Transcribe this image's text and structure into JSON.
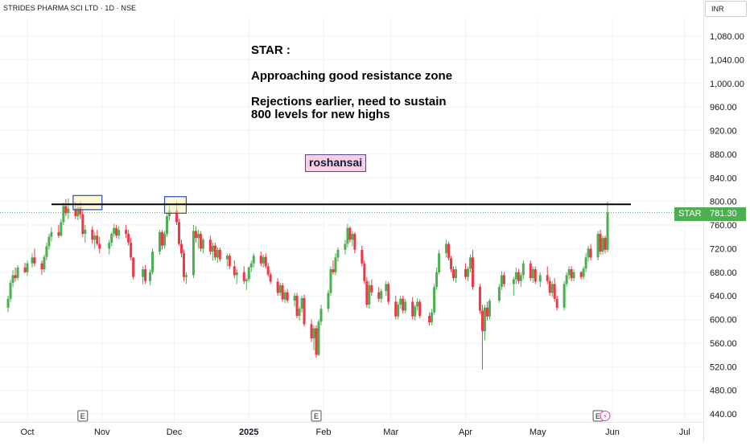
{
  "header": {
    "symbol_title": "STRIDES PHARMA SCI LTD · 1D · NSE",
    "currency": "INR"
  },
  "annotations": {
    "title": "STAR :",
    "line1": "Approaching good resistance zone",
    "line2": "Rejections earlier, need to sustain 800 levels for new highs",
    "author": "roshansai"
  },
  "last_price": {
    "symbol": "STAR",
    "value": "781.30",
    "numeric": 781.3
  },
  "colors": {
    "up": "#4caf50",
    "down": "#f23645",
    "price_tag": "#4caf50",
    "resistance": "#000000",
    "highlight_fill": "#fff3b0",
    "highlight_border": "#2a4fb5",
    "earnings_border": "#555555",
    "dividend": "#e040a0"
  },
  "chart_data": {
    "type": "candlestick",
    "resistance_level": 795,
    "ylim": [
      430,
      1110
    ],
    "y_ticks": [
      "440.00",
      "480.00",
      "520.00",
      "560.00",
      "600.00",
      "640.00",
      "680.00",
      "720.00",
      "760.00",
      "800.00",
      "840.00",
      "880.00",
      "920.00",
      "960.00",
      "1,000.00",
      "1,040.00",
      "1,080.00"
    ],
    "x_ticks": [
      {
        "label": "Oct",
        "date": "2024-10-01"
      },
      {
        "label": "Nov",
        "date": "2024-11-01"
      },
      {
        "label": "Dec",
        "date": "2024-12-01"
      },
      {
        "label": "2025",
        "date": "2025-01-01"
      },
      {
        "label": "Feb",
        "date": "2025-02-01"
      },
      {
        "label": "Mar",
        "date": "2025-03-01"
      },
      {
        "label": "Apr",
        "date": "2025-04-01"
      },
      {
        "label": "May",
        "date": "2025-05-01"
      },
      {
        "label": "Jun",
        "date": "2025-06-01"
      },
      {
        "label": "Jul",
        "date": "2025-07-01"
      }
    ],
    "highlight_zones": [
      {
        "from": "2024-10-21",
        "to": "2024-10-31",
        "low": 786,
        "high": 810
      },
      {
        "from": "2024-11-28",
        "to": "2024-12-05",
        "low": 780,
        "high": 808
      }
    ],
    "events": [
      {
        "type": "earnings",
        "label": "E",
        "date": "2024-10-24"
      },
      {
        "type": "earnings",
        "label": "E",
        "date": "2025-01-29"
      },
      {
        "type": "earnings",
        "label": "E",
        "date": "2025-05-26"
      },
      {
        "type": "dividend",
        "label": "⚡",
        "date": "2025-05-29"
      }
    ],
    "candles": [
      [
        "2024-09-23",
        620,
        640,
        612,
        635
      ],
      [
        "2024-09-24",
        635,
        668,
        630,
        662
      ],
      [
        "2024-09-25",
        662,
        684,
        655,
        675
      ],
      [
        "2024-09-26",
        675,
        688,
        664,
        670
      ],
      [
        "2024-09-27",
        670,
        692,
        666,
        688
      ],
      [
        "2024-09-30",
        688,
        696,
        678,
        680
      ],
      [
        "2024-10-01",
        680,
        700,
        674,
        695
      ],
      [
        "2024-10-03",
        695,
        712,
        688,
        705
      ],
      [
        "2024-10-04",
        705,
        720,
        690,
        695
      ],
      [
        "2024-10-07",
        695,
        700,
        676,
        685
      ],
      [
        "2024-10-08",
        685,
        710,
        680,
        706
      ],
      [
        "2024-10-09",
        706,
        730,
        700,
        724
      ],
      [
        "2024-10-10",
        724,
        745,
        718,
        740
      ],
      [
        "2024-10-11",
        740,
        756,
        732,
        748
      ],
      [
        "2024-10-14",
        748,
        760,
        738,
        742
      ],
      [
        "2024-10-15",
        742,
        770,
        740,
        765
      ],
      [
        "2024-10-16",
        765,
        798,
        760,
        792
      ],
      [
        "2024-10-17",
        792,
        804,
        775,
        780
      ],
      [
        "2024-10-18",
        780,
        805,
        770,
        788
      ],
      [
        "2024-10-21",
        788,
        800,
        770,
        775
      ],
      [
        "2024-10-22",
        775,
        795,
        768,
        790
      ],
      [
        "2024-10-23",
        790,
        800,
        770,
        778
      ],
      [
        "2024-10-24",
        778,
        786,
        740,
        745
      ],
      [
        "2024-10-25",
        745,
        760,
        730,
        752
      ],
      [
        "2024-10-28",
        752,
        758,
        728,
        735
      ],
      [
        "2024-10-29",
        735,
        748,
        720,
        742
      ],
      [
        "2024-10-30",
        742,
        752,
        725,
        728
      ],
      [
        "2024-10-31",
        728,
        740,
        712,
        720
      ],
      [
        "2024-11-04",
        720,
        735,
        710,
        730
      ],
      [
        "2024-11-05",
        730,
        748,
        724,
        745
      ],
      [
        "2024-11-06",
        745,
        762,
        740,
        755
      ],
      [
        "2024-11-07",
        755,
        760,
        738,
        742
      ],
      [
        "2024-11-08",
        742,
        758,
        736,
        752
      ],
      [
        "2024-11-11",
        752,
        760,
        738,
        745
      ],
      [
        "2024-11-12",
        745,
        752,
        725,
        730
      ],
      [
        "2024-11-13",
        730,
        738,
        700,
        705
      ],
      [
        "2024-11-14",
        705,
        705,
        668,
        672
      ],
      [
        "2024-11-18",
        672,
        690,
        660,
        685
      ],
      [
        "2024-11-19",
        685,
        692,
        660,
        665
      ],
      [
        "2024-11-21",
        665,
        685,
        658,
        680
      ],
      [
        "2024-11-22",
        680,
        720,
        676,
        715
      ],
      [
        "2024-11-25",
        715,
        752,
        710,
        748
      ],
      [
        "2024-11-26",
        748,
        752,
        718,
        725
      ],
      [
        "2024-11-27",
        725,
        750,
        720,
        745
      ],
      [
        "2024-11-28",
        745,
        780,
        740,
        775
      ],
      [
        "2024-11-29",
        775,
        792,
        768,
        785
      ],
      [
        "2024-12-02",
        785,
        800,
        760,
        765
      ],
      [
        "2024-12-03",
        765,
        770,
        725,
        728
      ],
      [
        "2024-12-04",
        728,
        735,
        705,
        712
      ],
      [
        "2024-12-05",
        712,
        718,
        665,
        672
      ],
      [
        "2024-12-06",
        672,
        680,
        660,
        675
      ],
      [
        "2024-12-09",
        675,
        760,
        670,
        750
      ],
      [
        "2024-12-10",
        750,
        758,
        730,
        738
      ],
      [
        "2024-12-11",
        738,
        752,
        720,
        745
      ],
      [
        "2024-12-12",
        745,
        750,
        715,
        720
      ],
      [
        "2024-12-13",
        720,
        738,
        712,
        735
      ],
      [
        "2024-12-16",
        735,
        742,
        710,
        715
      ],
      [
        "2024-12-17",
        715,
        730,
        700,
        725
      ],
      [
        "2024-12-18",
        725,
        730,
        700,
        705
      ],
      [
        "2024-12-19",
        705,
        722,
        696,
        718
      ],
      [
        "2024-12-20",
        718,
        722,
        698,
        702
      ],
      [
        "2024-12-23",
        702,
        712,
        690,
        708
      ],
      [
        "2024-12-24",
        708,
        712,
        685,
        690
      ],
      [
        "2024-12-26",
        690,
        700,
        670,
        675
      ],
      [
        "2024-12-27",
        675,
        685,
        660,
        680
      ],
      [
        "2024-12-30",
        680,
        690,
        660,
        665
      ],
      [
        "2024-12-31",
        665,
        670,
        650,
        668
      ],
      [
        "2025-01-01",
        668,
        690,
        664,
        688
      ],
      [
        "2025-01-02",
        688,
        700,
        680,
        695
      ],
      [
        "2025-01-03",
        695,
        712,
        688,
        708
      ],
      [
        "2025-01-06",
        708,
        715,
        690,
        695
      ],
      [
        "2025-01-07",
        695,
        710,
        688,
        706
      ],
      [
        "2025-01-08",
        706,
        712,
        686,
        690
      ],
      [
        "2025-01-09",
        690,
        696,
        672,
        676
      ],
      [
        "2025-01-10",
        676,
        680,
        660,
        664
      ],
      [
        "2025-01-13",
        664,
        670,
        640,
        645
      ],
      [
        "2025-01-14",
        645,
        662,
        640,
        658
      ],
      [
        "2025-01-15",
        658,
        662,
        630,
        634
      ],
      [
        "2025-01-16",
        634,
        650,
        628,
        646
      ],
      [
        "2025-01-17",
        646,
        652,
        628,
        632
      ],
      [
        "2025-01-20",
        632,
        645,
        622,
        640
      ],
      [
        "2025-01-21",
        640,
        645,
        602,
        606
      ],
      [
        "2025-01-22",
        606,
        622,
        598,
        618
      ],
      [
        "2025-01-23",
        618,
        640,
        612,
        636
      ],
      [
        "2025-01-24",
        636,
        642,
        588,
        592
      ],
      [
        "2025-01-27",
        592,
        600,
        562,
        568
      ],
      [
        "2025-01-28",
        568,
        590,
        548,
        585
      ],
      [
        "2025-01-29",
        585,
        590,
        535,
        540
      ],
      [
        "2025-01-30",
        540,
        600,
        538,
        596
      ],
      [
        "2025-01-31",
        596,
        625,
        590,
        618
      ],
      [
        "2025-02-03",
        618,
        650,
        612,
        645
      ],
      [
        "2025-02-04",
        645,
        690,
        640,
        685
      ],
      [
        "2025-02-05",
        685,
        700,
        676,
        680
      ],
      [
        "2025-02-06",
        680,
        712,
        675,
        705
      ],
      [
        "2025-02-07",
        705,
        722,
        698,
        718
      ],
      [
        "2025-02-10",
        718,
        735,
        710,
        728
      ],
      [
        "2025-02-11",
        728,
        762,
        722,
        755
      ],
      [
        "2025-02-12",
        755,
        758,
        730,
        735
      ],
      [
        "2025-02-13",
        735,
        750,
        724,
        745
      ],
      [
        "2025-02-14",
        745,
        748,
        712,
        718
      ],
      [
        "2025-02-17",
        718,
        725,
        690,
        695
      ],
      [
        "2025-02-18",
        695,
        700,
        660,
        665
      ],
      [
        "2025-02-19",
        665,
        672,
        620,
        625
      ],
      [
        "2025-02-20",
        625,
        665,
        618,
        658
      ],
      [
        "2025-02-21",
        658,
        668,
        640,
        646
      ],
      [
        "2025-02-24",
        646,
        655,
        630,
        635
      ],
      [
        "2025-02-25",
        635,
        652,
        628,
        648
      ],
      [
        "2025-02-27",
        648,
        665,
        640,
        660
      ],
      [
        "2025-02-28",
        660,
        664,
        625,
        630
      ],
      [
        "2025-03-03",
        630,
        640,
        600,
        605
      ],
      [
        "2025-03-04",
        605,
        630,
        600,
        625
      ],
      [
        "2025-03-05",
        625,
        640,
        618,
        635
      ],
      [
        "2025-03-06",
        635,
        640,
        610,
        615
      ],
      [
        "2025-03-07",
        615,
        635,
        610,
        630
      ],
      [
        "2025-03-10",
        630,
        638,
        600,
        605
      ],
      [
        "2025-03-11",
        605,
        625,
        598,
        622
      ],
      [
        "2025-03-12",
        622,
        636,
        615,
        630
      ],
      [
        "2025-03-13",
        630,
        634,
        602,
        606
      ],
      [
        "2025-03-17",
        606,
        612,
        590,
        595
      ],
      [
        "2025-03-18",
        595,
        618,
        590,
        612
      ],
      [
        "2025-03-19",
        612,
        660,
        608,
        655
      ],
      [
        "2025-03-20",
        655,
        688,
        650,
        680
      ],
      [
        "2025-03-21",
        680,
        718,
        676,
        712
      ],
      [
        "2025-03-24",
        712,
        735,
        705,
        728
      ],
      [
        "2025-03-25",
        728,
        732,
        700,
        704
      ],
      [
        "2025-03-26",
        704,
        708,
        680,
        685
      ],
      [
        "2025-03-27",
        685,
        690,
        665,
        670
      ],
      [
        "2025-03-28",
        670,
        690,
        662,
        685
      ],
      [
        "2025-04-01",
        685,
        695,
        668,
        672
      ],
      [
        "2025-04-02",
        672,
        690,
        665,
        686
      ],
      [
        "2025-04-03",
        686,
        710,
        680,
        705
      ],
      [
        "2025-04-04",
        705,
        718,
        650,
        655
      ],
      [
        "2025-04-07",
        655,
        660,
        610,
        615
      ],
      [
        "2025-04-08",
        615,
        625,
        515,
        580
      ],
      [
        "2025-04-09",
        580,
        625,
        565,
        620
      ],
      [
        "2025-04-10",
        620,
        630,
        598,
        605
      ],
      [
        "2025-04-11",
        605,
        635,
        600,
        632
      ],
      [
        "2025-04-15",
        632,
        660,
        628,
        655
      ],
      [
        "2025-04-16",
        655,
        682,
        650,
        675
      ],
      [
        "2025-04-17",
        675,
        680,
        655,
        660
      ],
      [
        "2025-04-21",
        660,
        672,
        640,
        668
      ],
      [
        "2025-04-22",
        668,
        688,
        660,
        680
      ],
      [
        "2025-04-23",
        680,
        686,
        660,
        665
      ],
      [
        "2025-04-24",
        665,
        680,
        655,
        675
      ],
      [
        "2025-04-25",
        675,
        700,
        668,
        695
      ],
      [
        "2025-04-28",
        695,
        700,
        665,
        670
      ],
      [
        "2025-04-29",
        670,
        690,
        662,
        685
      ],
      [
        "2025-04-30",
        685,
        690,
        660,
        664
      ],
      [
        "2025-05-02",
        664,
        680,
        655,
        675
      ],
      [
        "2025-05-05",
        675,
        690,
        660,
        665
      ],
      [
        "2025-05-06",
        665,
        672,
        640,
        645
      ],
      [
        "2025-05-07",
        645,
        665,
        638,
        660
      ],
      [
        "2025-05-08",
        660,
        670,
        630,
        635
      ],
      [
        "2025-05-09",
        635,
        640,
        615,
        620
      ],
      [
        "2025-05-12",
        620,
        665,
        615,
        660
      ],
      [
        "2025-05-13",
        660,
        680,
        655,
        675
      ],
      [
        "2025-05-14",
        675,
        690,
        668,
        685
      ],
      [
        "2025-05-15",
        685,
        690,
        665,
        670
      ],
      [
        "2025-05-16",
        670,
        685,
        665,
        680
      ],
      [
        "2025-05-19",
        680,
        682,
        668,
        672
      ],
      [
        "2025-05-20",
        672,
        690,
        668,
        686
      ],
      [
        "2025-05-21",
        686,
        712,
        680,
        705
      ],
      [
        "2025-05-22",
        705,
        725,
        698,
        720
      ],
      [
        "2025-05-23",
        720,
        728,
        700,
        705
      ],
      [
        "2025-05-26",
        705,
        750,
        700,
        745
      ],
      [
        "2025-05-27",
        745,
        752,
        710,
        715
      ],
      [
        "2025-05-28",
        715,
        742,
        710,
        738
      ],
      [
        "2025-05-29",
        738,
        742,
        712,
        718
      ],
      [
        "2025-05-30",
        718,
        800,
        714,
        781.3
      ]
    ]
  }
}
